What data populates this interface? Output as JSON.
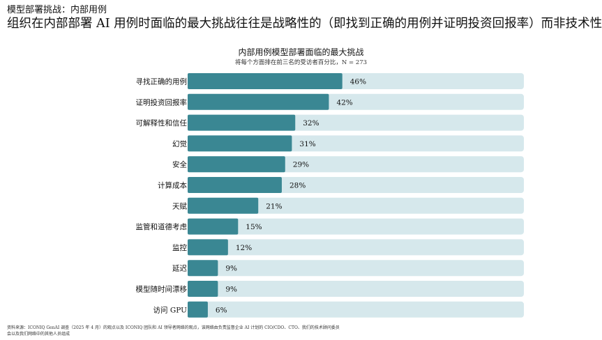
{
  "header": {
    "kicker": "模型部署挑战：内部用例",
    "headline": "组织在内部部署 AI 用例时面临的最大挑战往往是战略性的（即找到正确的用例并证明投资回报率）而非技术性的"
  },
  "chart_data": {
    "type": "bar",
    "orientation": "horizontal",
    "title": "内部用例模型部署面临的最大挑战",
    "subtitle": "将每个方面排在前三名的受访者百分比，N = 273",
    "categories": [
      "寻找正确的用例",
      "证明投资回报率",
      "可解释性和信任",
      "幻觉",
      "安全",
      "计算成本",
      "天赋",
      "监管和道德考虑",
      "监控",
      "延迟",
      "模型随时间漂移",
      "访问 GPU"
    ],
    "values": [
      46,
      42,
      32,
      31,
      29,
      28,
      21,
      15,
      12,
      9,
      9,
      6
    ],
    "value_labels": [
      "46%",
      "42%",
      "32%",
      "31%",
      "29%",
      "28%",
      "21%",
      "15%",
      "12%",
      "9%",
      "9%",
      "6%"
    ],
    "xlim": [
      0,
      100
    ],
    "grid": false,
    "legend": "none",
    "colors": {
      "bar": "#3a8793",
      "track": "#d6e8ec"
    }
  },
  "footnote": {
    "line1": "资料来源：ICONIQ GenAI 调查（2025 年 4 月）的观点以及 ICONIQ 团队和 AI 领导者网络的观点，该网络由负责监督企业 AI 计划的 CIO/CDO、CTO、我们的技术顾问委员",
    "line2": "会以及我们网络中的其他人员组成"
  }
}
